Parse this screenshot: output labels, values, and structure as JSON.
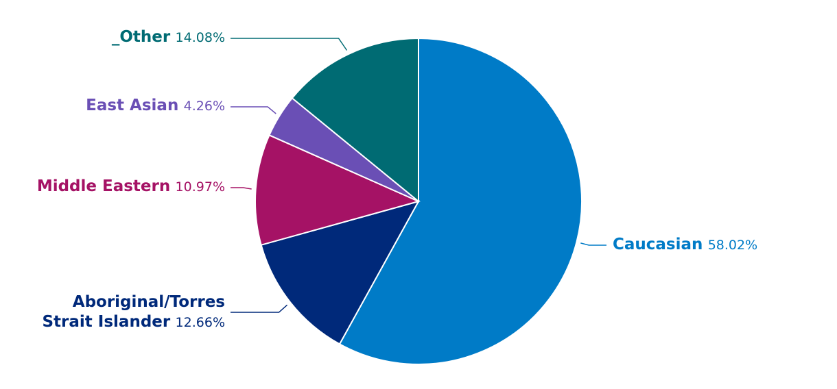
{
  "chart_data": {
    "type": "pie",
    "categories": [
      "Caucasian",
      "Aboriginal/Torres Strait Islander",
      "Middle Eastern",
      "East Asian",
      "_Other"
    ],
    "values": [
      58.02,
      12.66,
      10.97,
      4.26,
      14.08
    ],
    "value_labels": [
      "58.02%",
      "12.66%",
      "10.97%",
      "4.26%",
      "14.08%"
    ],
    "colors": [
      "#007bc7",
      "#00297a",
      "#a51265",
      "#6a4fb5",
      "#006b73"
    ]
  }
}
